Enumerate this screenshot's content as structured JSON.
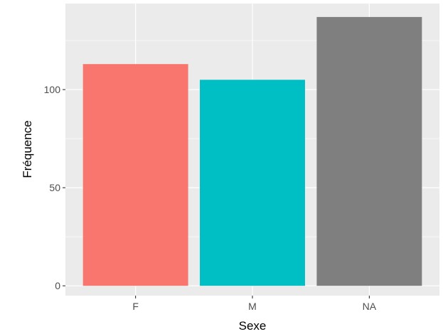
{
  "chart_data": {
    "type": "bar",
    "categories": [
      "F",
      "M",
      "NA"
    ],
    "values": [
      113,
      105,
      137
    ],
    "colors": [
      "#F8766D",
      "#00BFC4",
      "#7F7F7F"
    ],
    "xlabel": "Sexe",
    "ylabel": "Fréquence",
    "ylim": [
      -5,
      143.85
    ],
    "yticks": [
      0,
      50,
      100
    ],
    "ytick_labels": [
      "0",
      "50",
      "100"
    ],
    "grid": true,
    "panel_background": "#EBEBEB",
    "gridline_color": "#FFFFFF"
  }
}
